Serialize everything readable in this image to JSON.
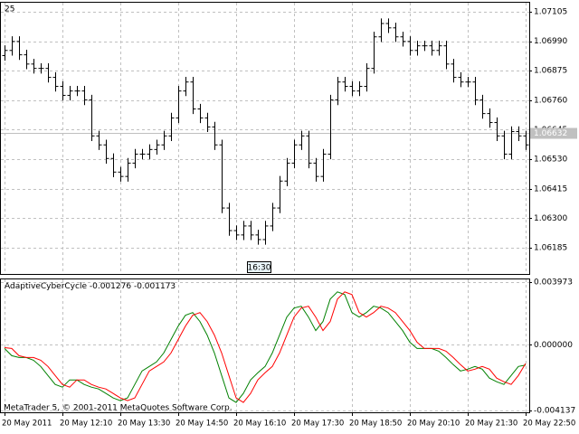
{
  "chart_data": [
    {
      "type": "ohlc",
      "label": "25",
      "color": "#000000",
      "xlim": [
        -0.5,
        72.5
      ],
      "xticks": [
        {
          "value": 0,
          "label": "20 May 2011"
        },
        {
          "value": 8,
          "label": "20 May 12:10"
        },
        {
          "value": 16,
          "label": "20 May 13:30"
        },
        {
          "value": 24,
          "label": "20 May 14:50"
        },
        {
          "value": 32,
          "label": "20 May 16:10"
        },
        {
          "value": 40,
          "label": "20 May 17:30"
        },
        {
          "value": 48,
          "label": "20 May 18:50"
        },
        {
          "value": 56,
          "label": "20 May 20:10"
        },
        {
          "value": 64,
          "label": "20 May 21:30"
        },
        {
          "value": 72,
          "label": "20 May 22:50"
        }
      ],
      "ylim": [
        1.06083,
        1.0714
      ],
      "yticks": [
        1.07105,
        {
          "value": 1.0699,
          "label": "1.06990"
        },
        1.06875,
        {
          "value": 1.0676,
          "label": "1.06760"
        },
        1.06645,
        {
          "value": 1.0653,
          "label": "1.06530"
        },
        1.06415,
        {
          "value": 1.063,
          "label": "1.06300"
        },
        1.06185
      ],
      "grid": true,
      "current_price": 1.06632,
      "annotation": "16:30",
      "open": [
        1.06934,
        1.06954,
        1.06989,
        1.06937,
        1.06901,
        1.06884,
        1.06884,
        1.06849,
        1.06814,
        1.06779,
        1.06796,
        1.06796,
        1.06761,
        1.06621,
        1.06586,
        1.06533,
        1.0648,
        1.06463,
        1.06515,
        1.0655,
        1.0655,
        1.06568,
        1.06586,
        1.06621,
        1.06691,
        1.06796,
        1.06831,
        1.06726,
        1.06691,
        1.06656,
        1.06586,
        1.0634,
        1.06252,
        1.06235,
        1.0627,
        1.06235,
        1.06217,
        1.0627,
        1.0634,
        1.06445,
        1.06515,
        1.06586,
        1.06621,
        1.06515,
        1.06463,
        1.0655,
        1.06761,
        1.06831,
        1.06814,
        1.06796,
        1.06814,
        1.06884,
        1.07007,
        1.07059,
        1.07042,
        1.07007,
        1.06989,
        1.06954,
        1.06972,
        1.06972,
        1.06954,
        1.06972,
        1.06901,
        1.06849,
        1.06831,
        1.06831,
        1.06761,
        1.06708,
        1.06673,
        1.06621,
        1.0655,
        1.06638,
        1.06621
      ],
      "high": [
        1.06974,
        1.07009,
        1.07009,
        1.06957,
        1.06921,
        1.06904,
        1.06904,
        1.06869,
        1.06834,
        1.06816,
        1.06816,
        1.06816,
        1.06781,
        1.06641,
        1.06606,
        1.06553,
        1.065,
        1.06535,
        1.0657,
        1.0657,
        1.06588,
        1.06606,
        1.06641,
        1.06711,
        1.06816,
        1.06851,
        1.06851,
        1.06746,
        1.06711,
        1.06676,
        1.06606,
        1.0636,
        1.06272,
        1.0629,
        1.0629,
        1.06255,
        1.0629,
        1.0636,
        1.06465,
        1.06535,
        1.06606,
        1.06641,
        1.06641,
        1.06535,
        1.0657,
        1.06781,
        1.06851,
        1.06851,
        1.06834,
        1.06834,
        1.06904,
        1.07027,
        1.07079,
        1.07079,
        1.07062,
        1.07027,
        1.07009,
        1.06992,
        1.06992,
        1.06992,
        1.06992,
        1.06992,
        1.06921,
        1.06869,
        1.06851,
        1.06851,
        1.06781,
        1.06728,
        1.06693,
        1.06641,
        1.06658,
        1.06658,
        1.06641
      ],
      "low": [
        1.06914,
        1.06934,
        1.06917,
        1.06881,
        1.06864,
        1.06864,
        1.06829,
        1.06794,
        1.06759,
        1.06759,
        1.06776,
        1.06741,
        1.06601,
        1.06566,
        1.06513,
        1.0646,
        1.06443,
        1.06443,
        1.06495,
        1.0653,
        1.0653,
        1.06548,
        1.06566,
        1.06601,
        1.06671,
        1.06776,
        1.06706,
        1.06671,
        1.06636,
        1.06566,
        1.0632,
        1.06232,
        1.06215,
        1.06215,
        1.06215,
        1.06197,
        1.06197,
        1.0625,
        1.0632,
        1.06425,
        1.06495,
        1.06566,
        1.06495,
        1.06443,
        1.06443,
        1.0653,
        1.06741,
        1.06794,
        1.06776,
        1.06776,
        1.06794,
        1.06864,
        1.06987,
        1.07022,
        1.06987,
        1.06969,
        1.06934,
        1.06934,
        1.06952,
        1.06934,
        1.06934,
        1.06881,
        1.06829,
        1.06811,
        1.06811,
        1.06741,
        1.06688,
        1.06653,
        1.06601,
        1.0653,
        1.0653,
        1.06601,
        1.06566
      ],
      "close": [
        1.06954,
        1.06989,
        1.06937,
        1.06901,
        1.06884,
        1.06884,
        1.06849,
        1.06814,
        1.06779,
        1.06796,
        1.06796,
        1.06761,
        1.06621,
        1.06586,
        1.06533,
        1.0648,
        1.06463,
        1.06515,
        1.0655,
        1.0655,
        1.06568,
        1.06586,
        1.06621,
        1.06691,
        1.06796,
        1.06831,
        1.06726,
        1.06691,
        1.06656,
        1.06586,
        1.0634,
        1.06252,
        1.06235,
        1.0627,
        1.06235,
        1.06217,
        1.0627,
        1.0634,
        1.06445,
        1.06515,
        1.06586,
        1.06621,
        1.06515,
        1.06463,
        1.0655,
        1.06761,
        1.06831,
        1.06814,
        1.06796,
        1.06814,
        1.06884,
        1.07007,
        1.07059,
        1.07042,
        1.07007,
        1.06989,
        1.06954,
        1.06972,
        1.06972,
        1.06954,
        1.06972,
        1.06901,
        1.06849,
        1.06831,
        1.06831,
        1.06761,
        1.06708,
        1.06673,
        1.06621,
        1.0655,
        1.06638,
        1.06621,
        1.06586
      ]
    },
    {
      "type": "line",
      "title": "AdaptiveCyberCycle",
      "footer": "MetaTrader 5, © 2001-2011 MetaQuotes Software Corp.",
      "xlim": [
        -0.5,
        72.5
      ],
      "ylim": [
        -0.004257,
        0.00414
      ],
      "yticks": [
        0.003973,
        {
          "value": 0,
          "label": "0.000000"
        },
        -0.004137
      ],
      "grid": true,
      "series": [
        {
          "color": "#008000",
          "values": [
            -0.000227,
            -0.000681,
            -0.000795,
            -0.000795,
            -0.000965,
            -0.001362,
            -0.00193,
            -0.002497,
            -0.002668,
            -0.002214,
            -0.002214,
            -0.002497,
            -0.002668,
            -0.002781,
            -0.003065,
            -0.003349,
            -0.003519,
            -0.003349,
            -0.002497,
            -0.001646,
            -0.001362,
            -0.001078,
            -0.000511,
            0.000341,
            0.001192,
            0.001873,
            0.002043,
            0.001476,
            0.000624,
            -0.000511,
            -0.00193,
            -0.003349,
            -0.003632,
            -0.003065,
            -0.002214,
            -0.001759,
            -0.001362,
            -0.000511,
            0.000624,
            0.001759,
            0.002327,
            0.002441,
            0.001759,
            0.000908,
            0.001476,
            0.002895,
            0.003349,
            0.003178,
            0.002043,
            0.001759,
            0.002043,
            0.002441,
            0.002327,
            0.002043,
            0.001476,
            0.000908,
            0.00017,
            -0.000227,
            -0.000227,
            -0.000227,
            -0.000397,
            -0.000795,
            -0.001249,
            -0.001646,
            -0.001532,
            -0.001362,
            -0.001532,
            -0.0021,
            -0.002327,
            -0.002497,
            -0.00193,
            -0.001362,
            -0.001276
          ]
        },
        {
          "color": "#ff0000",
          "values": [
            -0.00017,
            -0.000227,
            -0.000681,
            -0.000795,
            -0.000795,
            -0.000965,
            -0.001362,
            -0.00193,
            -0.002497,
            -0.002668,
            -0.002214,
            -0.002214,
            -0.002497,
            -0.002668,
            -0.002781,
            -0.003065,
            -0.003349,
            -0.003519,
            -0.003349,
            -0.002497,
            -0.001646,
            -0.001362,
            -0.001078,
            -0.000511,
            0.000341,
            0.001192,
            0.001873,
            0.002043,
            0.001476,
            0.000624,
            -0.000511,
            -0.00193,
            -0.003349,
            -0.003632,
            -0.003065,
            -0.002214,
            -0.001759,
            -0.001362,
            -0.000511,
            0.000624,
            0.001759,
            0.002327,
            0.002441,
            0.001759,
            0.000908,
            0.001476,
            0.002895,
            0.003349,
            0.003178,
            0.002043,
            0.001759,
            0.002043,
            0.002441,
            0.002327,
            0.002043,
            0.001476,
            0.000908,
            0.00017,
            -0.000227,
            -0.000227,
            -0.000227,
            -0.000397,
            -0.000795,
            -0.001249,
            -0.001646,
            -0.001532,
            -0.001362,
            -0.001532,
            -0.0021,
            -0.002327,
            -0.002497,
            -0.00193,
            -0.001173
          ]
        }
      ]
    }
  ]
}
